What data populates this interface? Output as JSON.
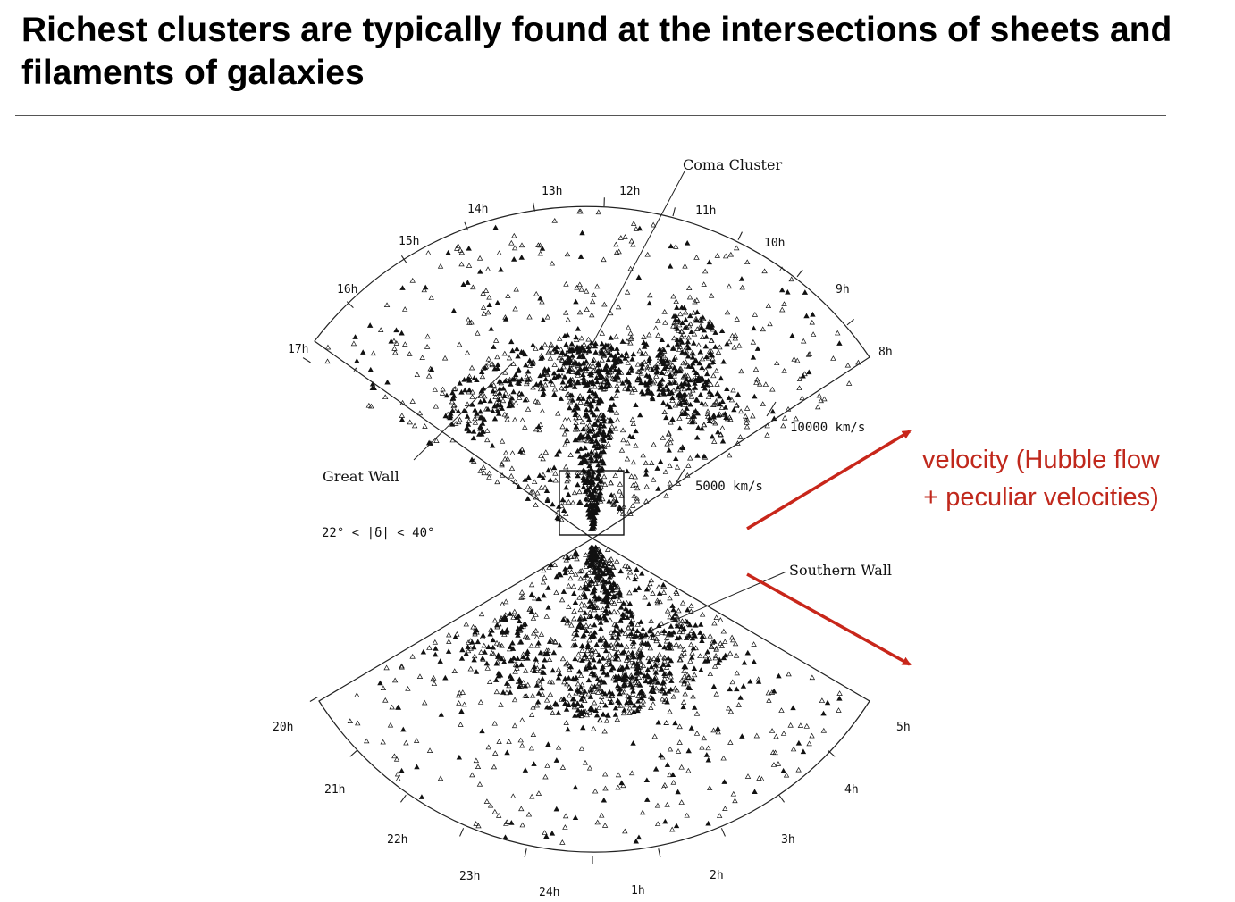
{
  "title": "Richest clusters are typically found at the intersections of sheets and filaments of galaxies",
  "diagram": {
    "hour_labels_north": [
      "8h",
      "9h",
      "10h",
      "11h",
      "12h",
      "13h",
      "14h",
      "15h",
      "16h",
      "17h"
    ],
    "hour_labels_south": [
      "20h",
      "21h",
      "22h",
      "23h",
      "24h",
      "1h",
      "2h",
      "3h",
      "4h",
      "5h"
    ],
    "velocity_scale": [
      "5000 km/s",
      "10000 km/s"
    ],
    "declination_range": "22° < |δ| < 40°",
    "annotations": {
      "coma": "Coma Cluster",
      "great_wall": "Great Wall",
      "southern_wall": "Southern Wall"
    }
  },
  "velocity_note": "velocity (Hubble flow + peculiar velocities)",
  "colors": {
    "arrow": "#c8261a",
    "text_accent": "#c0281c"
  }
}
